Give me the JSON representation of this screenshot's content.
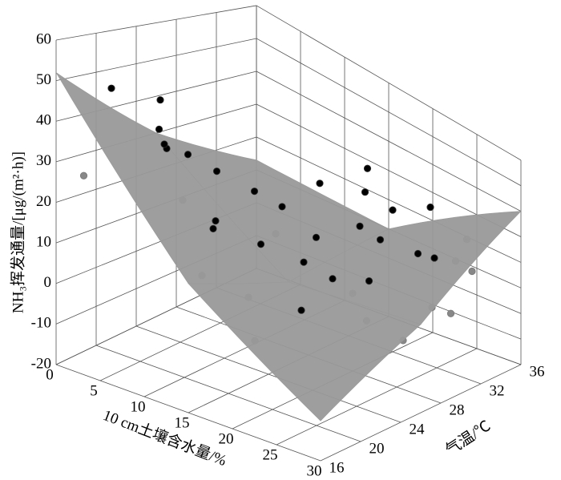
{
  "chart_data": {
    "type": "scatter3d",
    "xlabel": "10 cm土壤含水量/%",
    "ylabel": "气温/℃",
    "zlabel": "NH₃挥发通量/[μg/(m²·h)]",
    "xlim": [
      0,
      30
    ],
    "xticks": [
      0,
      5,
      10,
      15,
      20,
      25,
      30
    ],
    "ylim": [
      16,
      36
    ],
    "yticks": [
      16,
      20,
      24,
      28,
      32,
      36
    ],
    "zlim": [
      -20,
      60
    ],
    "zticks": [
      -20,
      -10,
      0,
      10,
      20,
      30,
      40,
      50,
      60
    ],
    "grid": true,
    "surface": {
      "color": "#999999",
      "x": [
        0,
        15,
        30
      ],
      "y": [
        16,
        26,
        36
      ],
      "z": [
        [
          52,
          15,
          -8
        ],
        [
          30,
          5,
          10
        ],
        [
          13,
          10,
          40
        ]
      ]
    },
    "series": [
      {
        "color": "#000000",
        "x": [
          2,
          4,
          5,
          6,
          7,
          8,
          8,
          9,
          10,
          10,
          11,
          12,
          12,
          13,
          14,
          15,
          16,
          17,
          18,
          18,
          19,
          20,
          20,
          21,
          22,
          22,
          23,
          24,
          25,
          26,
          27,
          28,
          29,
          29,
          30,
          3,
          9,
          14,
          20,
          25
        ],
        "y": [
          17,
          18,
          22,
          21,
          23,
          20,
          25,
          24,
          27,
          18,
          22,
          28,
          20,
          25,
          30,
          22,
          33,
          27,
          20,
          31,
          24,
          26,
          32,
          22,
          29,
          34,
          27,
          31,
          25,
          33,
          30,
          26,
          32,
          28,
          29,
          26,
          30,
          34,
          28,
          35
        ],
        "z": [
          28,
          52,
          48,
          42,
          35,
          40,
          30,
          18,
          25,
          45,
          20,
          22,
          10,
          15,
          30,
          5,
          35,
          20,
          -2,
          32,
          18,
          12,
          28,
          8,
          24,
          30,
          14,
          20,
          6,
          18,
          24,
          2,
          20,
          12,
          10,
          15,
          8,
          12,
          5,
          22
        ]
      }
    ]
  }
}
